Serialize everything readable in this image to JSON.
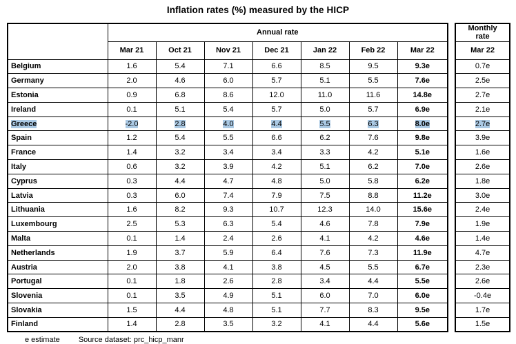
{
  "title": "Inflation rates (%) measured by the HICP",
  "table": {
    "annual_header": "Annual rate",
    "monthly_header": "Monthly\nrate",
    "annual_months": [
      "Mar 21",
      "Oct 21",
      "Nov 21",
      "Dec 21",
      "Jan 22",
      "Feb 22",
      "Mar 22"
    ],
    "monthly_month": "Mar 22",
    "highlighted_country": "Greece",
    "highlight_color": "#aac9e4",
    "rows": [
      {
        "country": "Belgium",
        "annual": [
          "1.6",
          "5.4",
          "7.1",
          "6.6",
          "8.5",
          "9.5",
          "9.3e"
        ],
        "monthly": "0.7e"
      },
      {
        "country": "Germany",
        "annual": [
          "2.0",
          "4.6",
          "6.0",
          "5.7",
          "5.1",
          "5.5",
          "7.6e"
        ],
        "monthly": "2.5e"
      },
      {
        "country": "Estonia",
        "annual": [
          "0.9",
          "6.8",
          "8.6",
          "12.0",
          "11.0",
          "11.6",
          "14.8e"
        ],
        "monthly": "2.7e"
      },
      {
        "country": "Ireland",
        "annual": [
          "0.1",
          "5.1",
          "5.4",
          "5.7",
          "5.0",
          "5.7",
          "6.9e"
        ],
        "monthly": "2.1e"
      },
      {
        "country": "Greece",
        "annual": [
          "-2.0",
          "2.8",
          "4.0",
          "4.4",
          "5.5",
          "6.3",
          "8.0e"
        ],
        "monthly": "2.7e"
      },
      {
        "country": "Spain",
        "annual": [
          "1.2",
          "5.4",
          "5.5",
          "6.6",
          "6.2",
          "7.6",
          "9.8e"
        ],
        "monthly": "3.9e"
      },
      {
        "country": "France",
        "annual": [
          "1.4",
          "3.2",
          "3.4",
          "3.4",
          "3.3",
          "4.2",
          "5.1e"
        ],
        "monthly": "1.6e"
      },
      {
        "country": "Italy",
        "annual": [
          "0.6",
          "3.2",
          "3.9",
          "4.2",
          "5.1",
          "6.2",
          "7.0e"
        ],
        "monthly": "2.6e"
      },
      {
        "country": "Cyprus",
        "annual": [
          "0.3",
          "4.4",
          "4.7",
          "4.8",
          "5.0",
          "5.8",
          "6.2e"
        ],
        "monthly": "1.8e"
      },
      {
        "country": "Latvia",
        "annual": [
          "0.3",
          "6.0",
          "7.4",
          "7.9",
          "7.5",
          "8.8",
          "11.2e"
        ],
        "monthly": "3.0e"
      },
      {
        "country": "Lithuania",
        "annual": [
          "1.6",
          "8.2",
          "9.3",
          "10.7",
          "12.3",
          "14.0",
          "15.6e"
        ],
        "monthly": "2.4e"
      },
      {
        "country": "Luxembourg",
        "annual": [
          "2.5",
          "5.3",
          "6.3",
          "5.4",
          "4.6",
          "7.8",
          "7.9e"
        ],
        "monthly": "1.9e"
      },
      {
        "country": "Malta",
        "annual": [
          "0.1",
          "1.4",
          "2.4",
          "2.6",
          "4.1",
          "4.2",
          "4.6e"
        ],
        "monthly": "1.4e"
      },
      {
        "country": "Netherlands",
        "annual": [
          "1.9",
          "3.7",
          "5.9",
          "6.4",
          "7.6",
          "7.3",
          "11.9e"
        ],
        "monthly": "4.7e"
      },
      {
        "country": "Austria",
        "annual": [
          "2.0",
          "3.8",
          "4.1",
          "3.8",
          "4.5",
          "5.5",
          "6.7e"
        ],
        "monthly": "2.3e"
      },
      {
        "country": "Portugal",
        "annual": [
          "0.1",
          "1.8",
          "2.6",
          "2.8",
          "3.4",
          "4.4",
          "5.5e"
        ],
        "monthly": "2.6e"
      },
      {
        "country": "Slovenia",
        "annual": [
          "0.1",
          "3.5",
          "4.9",
          "5.1",
          "6.0",
          "7.0",
          "6.0e"
        ],
        "monthly": "-0.4e"
      },
      {
        "country": "Slovakia",
        "annual": [
          "1.5",
          "4.4",
          "4.8",
          "5.1",
          "7.7",
          "8.3",
          "9.5e"
        ],
        "monthly": "1.7e"
      },
      {
        "country": "Finland",
        "annual": [
          "1.4",
          "2.8",
          "3.5",
          "3.2",
          "4.1",
          "4.4",
          "5.6e"
        ],
        "monthly": "1.5e"
      }
    ]
  },
  "footer": {
    "estimate_note": "e estimate",
    "source_note": "Source dataset: prc_hicp_manr"
  }
}
